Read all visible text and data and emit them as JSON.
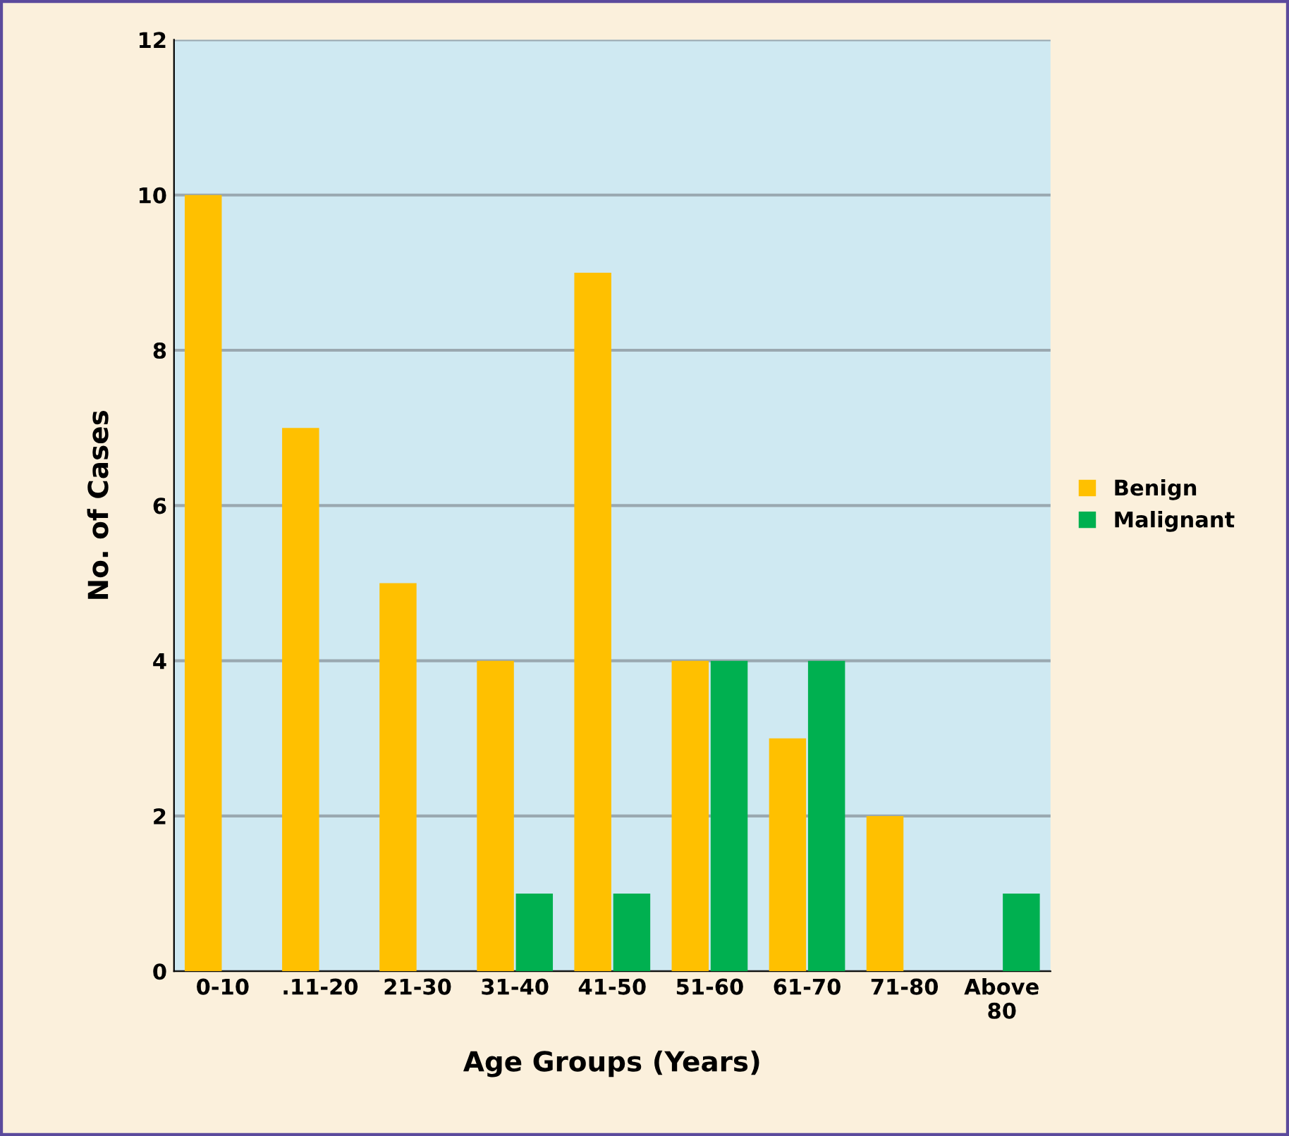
{
  "chart_data": {
    "type": "bar",
    "xlabel": "Age Groups (Years)",
    "ylabel": "No. of Cases",
    "categories": [
      "0-10",
      ".11-20",
      "21-30",
      "31-40",
      "41-50",
      "51-60",
      "61-70",
      "71-80",
      "Above\n80"
    ],
    "series": [
      {
        "name": "Benign",
        "color": "#ffc000",
        "values": [
          10,
          7,
          5,
          4,
          9,
          4,
          3,
          2,
          0
        ]
      },
      {
        "name": "Malignant",
        "color": "#00b050",
        "values": [
          0,
          0,
          0,
          1,
          1,
          4,
          4,
          0,
          1
        ]
      }
    ],
    "ylim": [
      0,
      12
    ],
    "yticks": [
      0,
      2,
      4,
      6,
      8,
      10,
      12
    ],
    "grid": "y",
    "legend": "right"
  }
}
